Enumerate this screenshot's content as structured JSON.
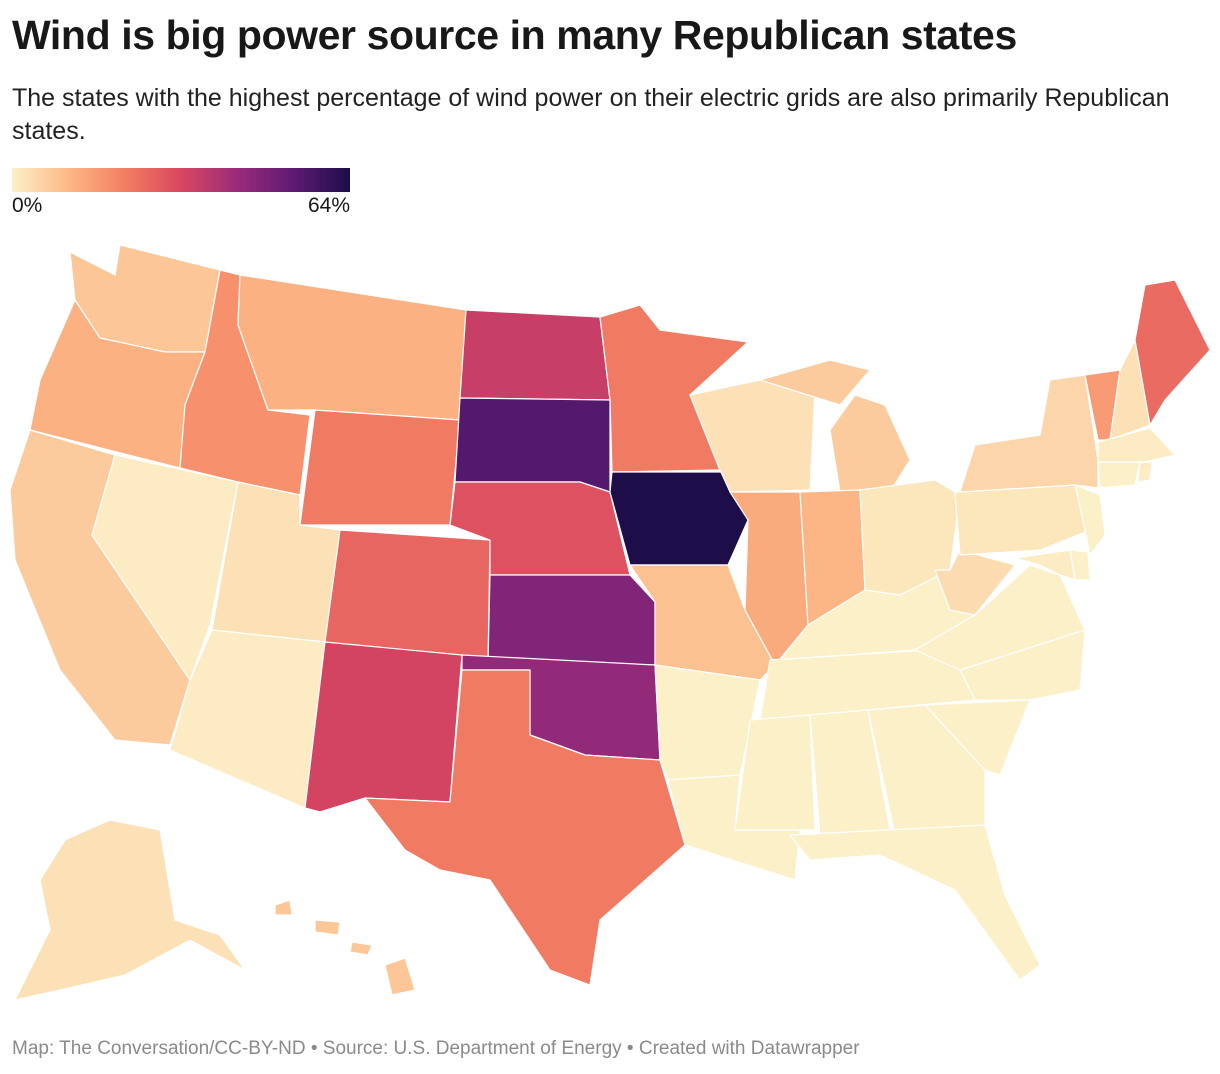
{
  "title": "Wind is big power source in many Republican states",
  "subtitle": "The states with the highest percentage of wind power on their electric grids are also primarily Republican states.",
  "legend": {
    "min_label": "0%",
    "max_label": "64%",
    "min_value": 0,
    "max_value": 64
  },
  "colors": {
    "scale": [
      "#fcf0c9",
      "#fcb886",
      "#f37e62",
      "#d9475f",
      "#9a2b7a",
      "#5e1a72",
      "#1d0e4a"
    ]
  },
  "map_data": {
    "type": "choropleth",
    "measure": "percentage of wind power on electric grid",
    "states": [
      {
        "id": "WA",
        "value": 8
      },
      {
        "id": "OR",
        "value": 12
      },
      {
        "id": "CA",
        "value": 7
      },
      {
        "id": "NV",
        "value": 1
      },
      {
        "id": "ID",
        "value": 18
      },
      {
        "id": "MT",
        "value": 12
      },
      {
        "id": "WY",
        "value": 22
      },
      {
        "id": "UT",
        "value": 3
      },
      {
        "id": "AZ",
        "value": 1
      },
      {
        "id": "CO",
        "value": 26
      },
      {
        "id": "NM",
        "value": 33
      },
      {
        "id": "ND",
        "value": 35
      },
      {
        "id": "SD",
        "value": 55
      },
      {
        "id": "NE",
        "value": 30
      },
      {
        "id": "KS",
        "value": 47
      },
      {
        "id": "OK",
        "value": 44
      },
      {
        "id": "TX",
        "value": 22
      },
      {
        "id": "MN",
        "value": 22
      },
      {
        "id": "IA",
        "value": 64
      },
      {
        "id": "MO",
        "value": 9
      },
      {
        "id": "AR",
        "value": 0
      },
      {
        "id": "LA",
        "value": 0
      },
      {
        "id": "WI",
        "value": 3
      },
      {
        "id": "IL",
        "value": 13
      },
      {
        "id": "MI",
        "value": 7
      },
      {
        "id": "IN",
        "value": 11
      },
      {
        "id": "OH",
        "value": 2
      },
      {
        "id": "KY",
        "value": 0
      },
      {
        "id": "TN",
        "value": 0
      },
      {
        "id": "MS",
        "value": 0
      },
      {
        "id": "AL",
        "value": 0
      },
      {
        "id": "GA",
        "value": 0
      },
      {
        "id": "FL",
        "value": 0
      },
      {
        "id": "SC",
        "value": 0
      },
      {
        "id": "NC",
        "value": 0
      },
      {
        "id": "VA",
        "value": 0
      },
      {
        "id": "WV",
        "value": 4
      },
      {
        "id": "PA",
        "value": 2
      },
      {
        "id": "NY",
        "value": 5
      },
      {
        "id": "VT",
        "value": 16
      },
      {
        "id": "NH",
        "value": 3
      },
      {
        "id": "ME",
        "value": 25
      },
      {
        "id": "MA",
        "value": 1
      },
      {
        "id": "RI",
        "value": 1
      },
      {
        "id": "CT",
        "value": 0
      },
      {
        "id": "NJ",
        "value": 0
      },
      {
        "id": "DE",
        "value": 0
      },
      {
        "id": "MD",
        "value": 1
      },
      {
        "id": "AK",
        "value": 3
      },
      {
        "id": "HI",
        "value": 8
      }
    ]
  },
  "footer": "Map: The Conversation/CC-BY-ND • Source: U.S. Department of Energy • Created with Datawrapper"
}
